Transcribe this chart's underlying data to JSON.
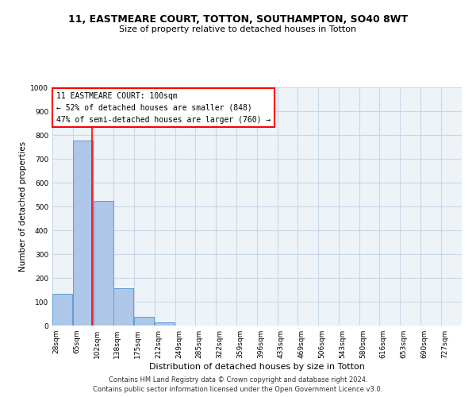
{
  "title": "11, EASTMEARE COURT, TOTTON, SOUTHAMPTON, SO40 8WT",
  "subtitle": "Size of property relative to detached houses in Totton",
  "xlabel": "Distribution of detached houses by size in Totton",
  "ylabel": "Number of detached properties",
  "bin_edges": [
    28,
    65,
    102,
    138,
    175,
    212,
    249,
    285,
    322,
    359,
    396,
    433,
    469,
    506,
    543,
    580,
    616,
    653,
    690,
    727,
    764
  ],
  "bar_heights": [
    133,
    778,
    524,
    158,
    37,
    12,
    0,
    0,
    0,
    0,
    0,
    0,
    0,
    0,
    0,
    0,
    0,
    0,
    0,
    0
  ],
  "bar_color": "#aec6e8",
  "bar_edge_color": "#5a9fd4",
  "grid_color": "#c8d8e8",
  "background_color": "#eef3f8",
  "vline_x": 100,
  "vline_color": "red",
  "annotation_box_text": "11 EASTMEARE COURT: 100sqm\n← 52% of detached houses are smaller (848)\n47% of semi-detached houses are larger (760) →",
  "ylim": [
    0,
    1000
  ],
  "yticks": [
    0,
    100,
    200,
    300,
    400,
    500,
    600,
    700,
    800,
    900,
    1000
  ],
  "footer_line1": "Contains HM Land Registry data © Crown copyright and database right 2024.",
  "footer_line2": "Contains public sector information licensed under the Open Government Licence v3.0.",
  "title_fontsize": 9,
  "subtitle_fontsize": 8,
  "xlabel_fontsize": 8,
  "ylabel_fontsize": 7.5,
  "tick_fontsize": 6.5,
  "annotation_fontsize": 7,
  "footer_fontsize": 6
}
